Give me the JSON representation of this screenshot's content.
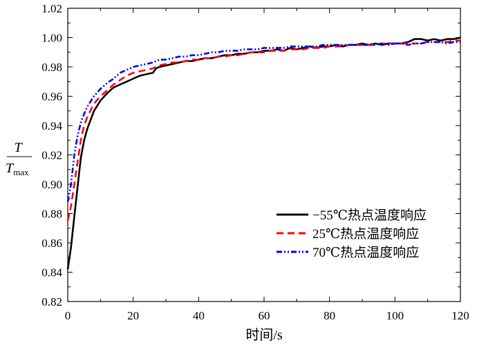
{
  "chart_data": {
    "type": "line",
    "xlabel": "时间/s",
    "ylabel": {
      "numerator": "T",
      "denominator": "T",
      "denominator_subscript": "max"
    },
    "xlim": [
      0,
      120
    ],
    "ylim": [
      0.82,
      1.02
    ],
    "xticks": [
      0,
      20,
      40,
      60,
      80,
      100,
      120
    ],
    "yticks": [
      "0.82",
      "0.84",
      "0.86",
      "0.88",
      "0.90",
      "0.92",
      "0.94",
      "0.96",
      "0.98",
      "1.00",
      "1.02"
    ],
    "grid": false,
    "legend_position": "bottom-right",
    "series": [
      {
        "name": "−55℃热点温度响应",
        "color": "#000000",
        "dash": "solid",
        "x": [
          0,
          1,
          2,
          3,
          4,
          5,
          6,
          8,
          10,
          12,
          14,
          16,
          18,
          20,
          22,
          24,
          26,
          27,
          28,
          30,
          32,
          34,
          36,
          38,
          40,
          42,
          44,
          46,
          48,
          50,
          52,
          54,
          56,
          58,
          60,
          62,
          64,
          66,
          68,
          70,
          72,
          74,
          76,
          78,
          80,
          82,
          84,
          86,
          88,
          90,
          92,
          94,
          96,
          98,
          100,
          102,
          104,
          106,
          108,
          110,
          112,
          114,
          116,
          118,
          120
        ],
        "y": [
          0.842,
          0.857,
          0.878,
          0.898,
          0.918,
          0.93,
          0.938,
          0.95,
          0.957,
          0.962,
          0.966,
          0.968,
          0.97,
          0.972,
          0.974,
          0.975,
          0.976,
          0.979,
          0.98,
          0.981,
          0.982,
          0.983,
          0.984,
          0.984,
          0.985,
          0.986,
          0.986,
          0.987,
          0.988,
          0.988,
          0.989,
          0.989,
          0.99,
          0.99,
          0.991,
          0.991,
          0.992,
          0.991,
          0.993,
          0.992,
          0.993,
          0.994,
          0.993,
          0.994,
          0.994,
          0.995,
          0.994,
          0.995,
          0.995,
          0.996,
          0.995,
          0.996,
          0.995,
          0.996,
          0.996,
          0.996,
          0.997,
          0.999,
          0.999,
          0.998,
          0.999,
          0.998,
          0.999,
          0.999,
          1.0
        ]
      },
      {
        "name": "25℃热点温度响应",
        "color": "#ff0000",
        "dash": "dashed",
        "x": [
          0,
          1,
          2,
          3,
          4,
          5,
          6,
          8,
          10,
          12,
          14,
          16,
          18,
          20,
          22,
          24,
          26,
          28,
          30,
          32,
          34,
          36,
          38,
          40,
          42,
          44,
          46,
          48,
          50,
          52,
          54,
          56,
          58,
          60,
          62,
          64,
          66,
          68,
          70,
          72,
          74,
          76,
          78,
          80,
          82,
          84,
          86,
          88,
          90,
          92,
          94,
          96,
          98,
          100,
          102,
          104,
          106,
          108,
          110,
          112,
          114,
          116,
          118,
          120
        ],
        "y": [
          0.875,
          0.885,
          0.9,
          0.915,
          0.93,
          0.94,
          0.946,
          0.955,
          0.96,
          0.964,
          0.968,
          0.971,
          0.974,
          0.976,
          0.977,
          0.978,
          0.979,
          0.981,
          0.982,
          0.983,
          0.983,
          0.984,
          0.985,
          0.985,
          0.986,
          0.986,
          0.987,
          0.987,
          0.988,
          0.988,
          0.989,
          0.99,
          0.99,
          0.99,
          0.991,
          0.991,
          0.991,
          0.992,
          0.992,
          0.992,
          0.993,
          0.993,
          0.993,
          0.994,
          0.994,
          0.994,
          0.995,
          0.995,
          0.995,
          0.995,
          0.995,
          0.996,
          0.996,
          0.996,
          0.996,
          0.996,
          0.996,
          0.996,
          0.997,
          0.997,
          0.997,
          0.997,
          0.998,
          0.998
        ]
      },
      {
        "name": "70℃热点温度响应",
        "color": "#0000ff",
        "dash": "dashdotdot",
        "x": [
          0,
          1,
          2,
          3,
          4,
          5,
          6,
          8,
          10,
          12,
          14,
          16,
          18,
          20,
          22,
          24,
          26,
          28,
          30,
          32,
          34,
          36,
          38,
          40,
          42,
          44,
          46,
          48,
          50,
          52,
          54,
          56,
          58,
          60,
          62,
          64,
          66,
          68,
          70,
          72,
          74,
          76,
          78,
          80,
          82,
          84,
          86,
          88,
          90,
          92,
          94,
          96,
          98,
          100,
          102,
          104,
          106,
          108,
          110,
          112,
          114,
          116,
          118,
          120
        ],
        "y": [
          0.888,
          0.9,
          0.92,
          0.933,
          0.942,
          0.948,
          0.953,
          0.96,
          0.965,
          0.969,
          0.972,
          0.976,
          0.978,
          0.98,
          0.981,
          0.982,
          0.983,
          0.985,
          0.985,
          0.986,
          0.987,
          0.987,
          0.988,
          0.988,
          0.989,
          0.99,
          0.99,
          0.991,
          0.991,
          0.991,
          0.992,
          0.992,
          0.992,
          0.993,
          0.993,
          0.993,
          0.993,
          0.994,
          0.994,
          0.994,
          0.994,
          0.994,
          0.995,
          0.995,
          0.995,
          0.995,
          0.995,
          0.995,
          0.995,
          0.995,
          0.995,
          0.996,
          0.995,
          0.996,
          0.996,
          0.995,
          0.996,
          0.996,
          0.997,
          0.997,
          0.997,
          0.996,
          0.997,
          0.997
        ]
      }
    ]
  }
}
